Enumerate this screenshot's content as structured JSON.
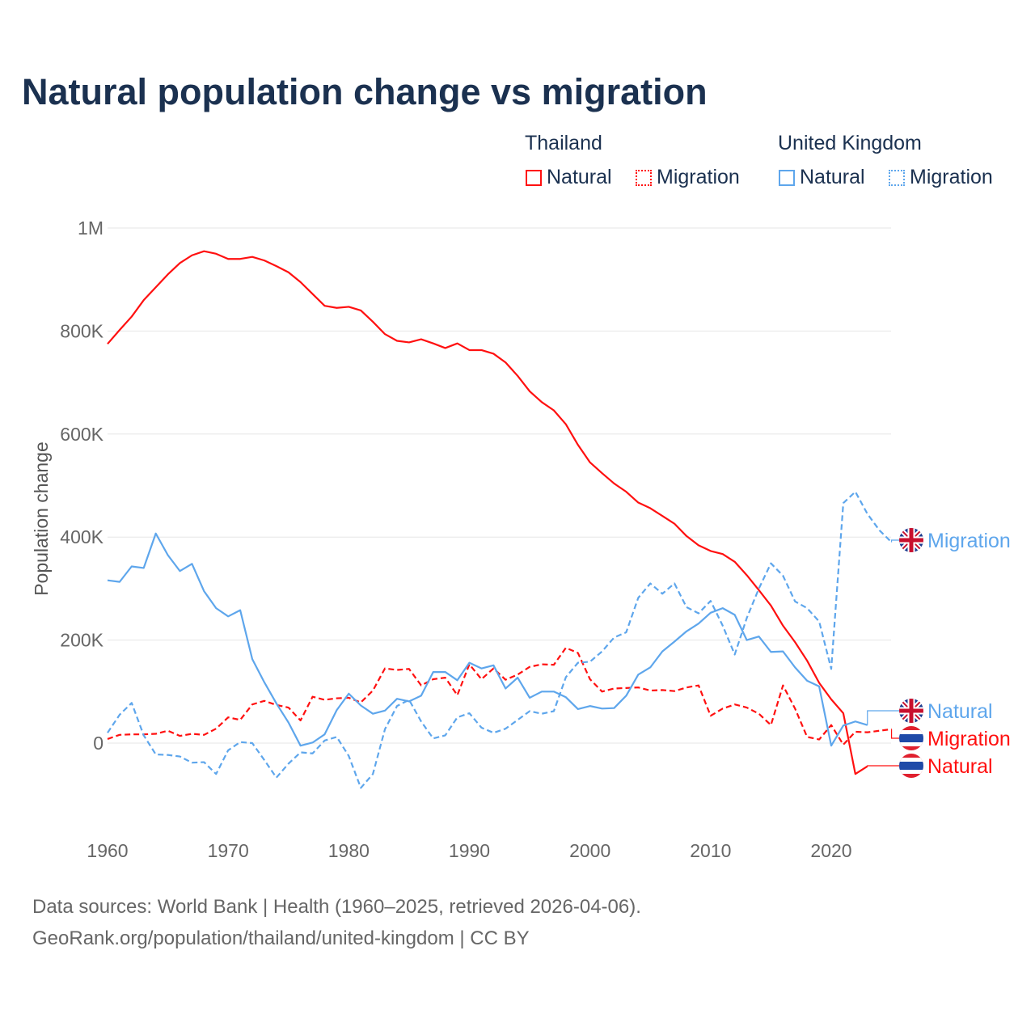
{
  "chart_data": {
    "type": "line",
    "title": "Natural population change vs migration",
    "ylabel": "Population change",
    "xlabel": "",
    "ylim": [
      -160000,
      1000000
    ],
    "xlim": [
      1960,
      2025
    ],
    "yticks": [
      0,
      200000,
      400000,
      600000,
      800000,
      1000000
    ],
    "ytick_labels": [
      "0",
      "200K",
      "400K",
      "600K",
      "800K",
      "1M"
    ],
    "xticks": [
      1960,
      1970,
      1980,
      1990,
      2000,
      2010,
      2020
    ],
    "xtick_labels": [
      "1960",
      "1970",
      "1980",
      "1990",
      "2000",
      "2010",
      "2020"
    ],
    "grid": true,
    "legend": {
      "groups": [
        {
          "name": "Thailand",
          "items": [
            "Natural",
            "Migration"
          ]
        },
        {
          "name": "United Kingdom",
          "items": [
            "Natural",
            "Migration"
          ]
        }
      ],
      "placement": "top-right"
    },
    "series": [
      {
        "name": "Thailand Natural",
        "country": "Thailand",
        "kind": "Natural",
        "color": "#ff1010",
        "dashed": false,
        "start": 1960,
        "values": [
          775,
          802,
          828,
          860,
          885,
          910,
          932,
          947,
          955,
          950,
          940,
          940,
          944,
          937,
          926,
          914,
          895,
          872,
          849,
          845,
          847,
          840,
          818,
          794,
          781,
          778,
          784,
          776,
          767,
          776,
          763,
          763,
          756,
          739,
          713,
          683,
          662,
          646,
          619,
          579,
          545,
          524,
          504,
          488,
          467,
          456,
          441,
          426,
          402,
          384,
          373,
          367,
          352,
          326,
          297,
          267,
          228,
          196,
          160,
          117,
          85,
          58,
          -60,
          -45
        ]
      },
      {
        "name": "Thailand Migration",
        "country": "Thailand",
        "kind": "Migration",
        "color": "#ff1010",
        "dashed": true,
        "start": 1960,
        "values": [
          8,
          16,
          17,
          17,
          18,
          24,
          14,
          18,
          16,
          28,
          50,
          45,
          75,
          82,
          74,
          69,
          44,
          90,
          84,
          87,
          88,
          79,
          102,
          145,
          142,
          144,
          112,
          124,
          127,
          93,
          153,
          124,
          145,
          123,
          133,
          148,
          153,
          152,
          185,
          175,
          124,
          100,
          106,
          107,
          108,
          102,
          103,
          101,
          108,
          112,
          53,
          67,
          75,
          69,
          57,
          35,
          112,
          67,
          12,
          7,
          35,
          -3,
          22,
          21,
          24,
          27
        ]
      },
      {
        "name": "United Kingdom Natural",
        "country": "United Kingdom",
        "kind": "Natural",
        "color": "#5ea6ec",
        "dashed": false,
        "start": 1960,
        "values": [
          316,
          313,
          343,
          340,
          407,
          365,
          334,
          348,
          295,
          262,
          246,
          258,
          163,
          118,
          77,
          40,
          -5,
          1,
          17,
          64,
          96,
          73,
          57,
          63,
          86,
          81,
          92,
          138,
          138,
          122,
          156,
          145,
          151,
          106,
          127,
          88,
          100,
          100,
          89,
          66,
          72,
          67,
          68,
          92,
          133,
          147,
          178,
          197,
          217,
          232,
          253,
          262,
          249,
          200,
          207,
          177,
          178,
          147,
          121,
          110,
          -5,
          34,
          42,
          35
        ]
      },
      {
        "name": "United Kingdom Migration",
        "country": "United Kingdom",
        "kind": "Migration",
        "color": "#5ea6ec",
        "dashed": true,
        "start": 1960,
        "values": [
          20,
          55,
          78,
          15,
          -22,
          -23,
          -26,
          -38,
          -37,
          -60,
          -14,
          2,
          0,
          -33,
          -67,
          -40,
          -18,
          -20,
          5,
          12,
          -25,
          -87,
          -60,
          27,
          72,
          84,
          42,
          9,
          15,
          50,
          58,
          30,
          20,
          28,
          45,
          62,
          57,
          62,
          128,
          156,
          158,
          178,
          205,
          215,
          282,
          310,
          290,
          310,
          264,
          252,
          276,
          228,
          172,
          243,
          300,
          349,
          325,
          275,
          262,
          236,
          144,
          466,
          488,
          445,
          413,
          390
        ]
      }
    ],
    "value_unit": "thousands",
    "end_labels": [
      {
        "text": "Migration",
        "series": 3,
        "flag": "uk"
      },
      {
        "text": "Natural",
        "series": 2,
        "flag": "uk"
      },
      {
        "text": "Migration",
        "series": 1,
        "flag": "th"
      },
      {
        "text": "Natural",
        "series": 0,
        "flag": "th"
      }
    ]
  },
  "legend": {
    "thailand": "Thailand",
    "uk": "United Kingdom",
    "natural": "Natural",
    "migration": "Migration"
  },
  "footer": {
    "line1": "Data sources: World Bank | Health (1960–2025, retrieved 2026-04-06).",
    "line2": "GeoRank.org/population/thailand/united-kingdom | CC BY"
  }
}
